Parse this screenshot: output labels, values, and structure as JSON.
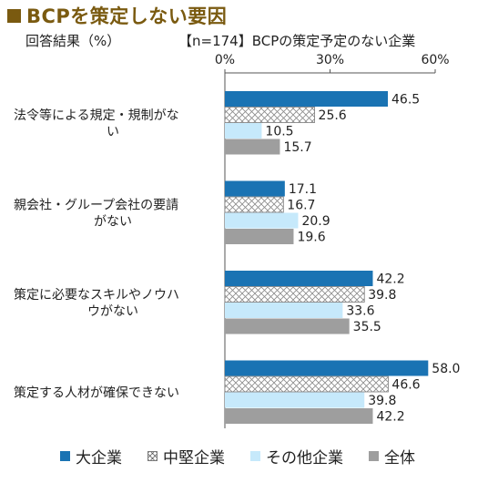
{
  "title": "BCPを策定しない要因",
  "subtitle_left": "回答結果（%）",
  "subtitle_right": "【n=174】BCPの策定予定のない企業",
  "colors": {
    "title": "#7a5a10",
    "large": "#1a73b3",
    "midsize": "#ffffff",
    "other": "#c6e9fb",
    "total": "#9e9e9e"
  },
  "chart_data": {
    "type": "bar",
    "orientation": "horizontal",
    "xlim": [
      0,
      60
    ],
    "x_ticks": [
      "0%",
      "30%",
      "60%"
    ],
    "grid": false,
    "legend_position": "bottom",
    "categories": [
      [
        "法令等による規定・規制がな",
        "い"
      ],
      [
        "親会社・グループ会社の要請",
        "がない"
      ],
      [
        "策定に必要なスキルやノウハ",
        "ウがない"
      ],
      [
        "策定する人材が確保できない"
      ]
    ],
    "series": [
      {
        "name": "大企業",
        "pattern": "solid",
        "color": "#1a73b3",
        "values": [
          46.5,
          17.1,
          42.2,
          58.0
        ],
        "labels": [
          "46.5",
          "17.1",
          "42.2",
          "58.0"
        ]
      },
      {
        "name": "中堅企業",
        "pattern": "crosshatch",
        "color": "#ffffff",
        "values": [
          25.6,
          16.7,
          39.8,
          46.6
        ],
        "labels": [
          "25.6",
          "16.7",
          "39.8",
          "46.6"
        ]
      },
      {
        "name": "その他企業",
        "pattern": "solid",
        "color": "#c6e9fb",
        "values": [
          10.5,
          20.9,
          33.6,
          39.8
        ],
        "labels": [
          "10.5",
          "20.9",
          "33.6",
          "39.8"
        ]
      },
      {
        "name": "全体",
        "pattern": "solid",
        "color": "#9e9e9e",
        "values": [
          15.7,
          19.6,
          35.5,
          42.2
        ],
        "labels": [
          "15.7",
          "19.6",
          "35.5",
          "42.2"
        ]
      }
    ]
  }
}
